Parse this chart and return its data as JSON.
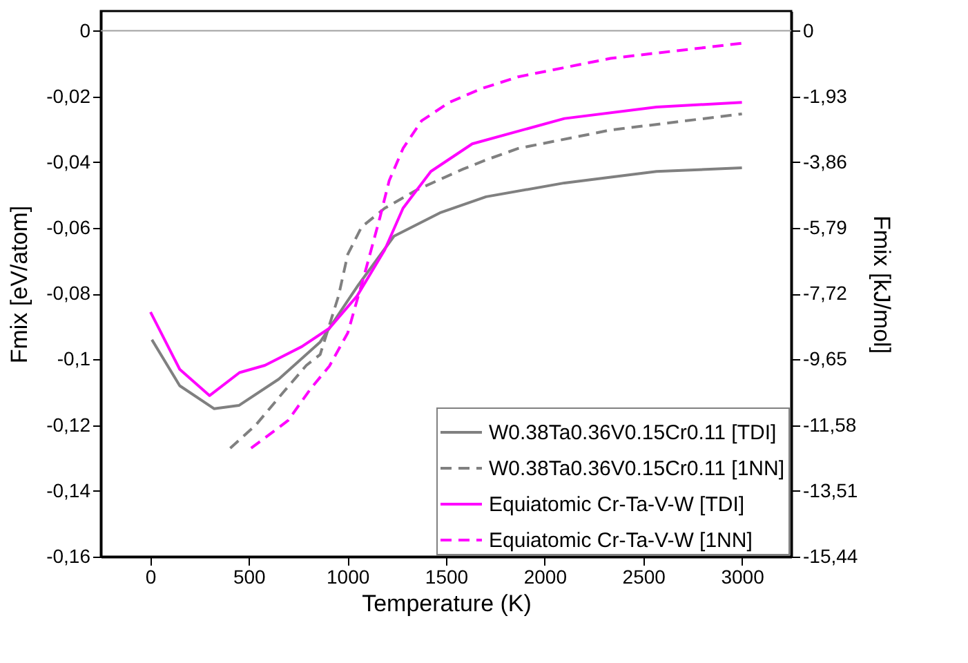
{
  "chart_data": {
    "type": "line",
    "xlabel": "Temperature (K)",
    "ylabel": "Fmix [eV/atom]",
    "y2label": "Fmix [kJ/mol]",
    "xlim": [
      -250,
      3250
    ],
    "xticks": [
      0,
      500,
      1000,
      1500,
      2000,
      2500,
      3000
    ],
    "ylim": [
      -0.16,
      0.006
    ],
    "yticks": [
      0,
      {
        "value": -0.02,
        "label": "-0,02"
      },
      {
        "value": -0.04,
        "label": "-0,04"
      },
      {
        "value": -0.06,
        "label": "-0,06"
      },
      {
        "value": -0.08,
        "label": "-0,08"
      },
      {
        "value": -0.1,
        "label": "-0,1"
      },
      {
        "value": -0.12,
        "label": "-0,12"
      },
      {
        "value": -0.14,
        "label": "-0,14"
      },
      {
        "value": -0.16,
        "label": "-0,16"
      }
    ],
    "y2lim": [
      -15.44,
      0.58
    ],
    "y2ticks": [
      0,
      {
        "value": -1.93,
        "label": "-1,93"
      },
      {
        "value": -3.86,
        "label": "-3,86"
      },
      {
        "value": -5.79,
        "label": "-5,79"
      },
      {
        "value": -7.72,
        "label": "-7,72"
      },
      {
        "value": -9.65,
        "label": "-9,65"
      },
      {
        "value": -11.58,
        "label": "-11,58"
      },
      {
        "value": -13.51,
        "label": "-13,51"
      },
      {
        "value": -15.44,
        "label": "-15,44"
      }
    ],
    "grid": false,
    "legend": "bottom right",
    "marker": "none",
    "ref_lines": [
      {
        "axis": "y",
        "value": 0,
        "color": "#a0a0a0"
      }
    ],
    "series": [
      {
        "name": "W0.38Ta0.36V0.15Cr0.11 [TDI]",
        "color": "#808080",
        "line_style": "solid",
        "x": [
          9,
          150,
          325,
          450,
          652,
          862,
          1049,
          1236,
          1469,
          1703,
          2100,
          2567,
          3000
        ],
        "values": [
          -0.094,
          -0.108,
          -0.115,
          -0.114,
          -0.106,
          -0.0947,
          -0.0779,
          -0.0625,
          -0.0554,
          -0.0505,
          -0.0463,
          -0.0428,
          -0.0417
        ]
      },
      {
        "name": "W0.38Ta0.36V0.15Cr0.11 [1NN]",
        "color": "#808080",
        "line_style": "dashed",
        "x": [
          406,
          535,
          675,
          792,
          862,
          955,
          1002,
          1072,
          1189,
          1352,
          1586,
          1703,
          1866,
          2334,
          3000
        ],
        "values": [
          -0.127,
          -0.12,
          -0.11,
          -0.1018,
          -0.0985,
          -0.0807,
          -0.068,
          -0.0597,
          -0.054,
          -0.0484,
          -0.0421,
          -0.0393,
          -0.0358,
          -0.0302,
          -0.0253
        ]
      },
      {
        "name": "Equiatomic Cr-Ta-V-W [TDI]",
        "color": "#ff00ff",
        "line_style": "solid",
        "x": [
          2,
          150,
          301,
          453,
          582,
          769,
          909,
          1049,
          1189,
          1282,
          1423,
          1633,
          2100,
          2567,
          3000
        ],
        "values": [
          -0.0856,
          -0.103,
          -0.111,
          -0.104,
          -0.1018,
          -0.0961,
          -0.0905,
          -0.0807,
          -0.0667,
          -0.054,
          -0.0428,
          -0.0344,
          -0.0267,
          -0.0232,
          -0.0218
        ]
      },
      {
        "name": "Equiatomic Cr-Ta-V-W [1NN]",
        "color": "#ff00ff",
        "line_style": "dashed",
        "x": [
          512,
          699,
          815,
          909,
          1002,
          1095,
          1165,
          1212,
          1282,
          1376,
          1516,
          1680,
          1866,
          2334,
          3000
        ],
        "values": [
          -0.127,
          -0.1186,
          -0.1088,
          -0.102,
          -0.0919,
          -0.0723,
          -0.0568,
          -0.0456,
          -0.0358,
          -0.0274,
          -0.0218,
          -0.0176,
          -0.014,
          -0.0084,
          -0.0038
        ]
      }
    ]
  }
}
